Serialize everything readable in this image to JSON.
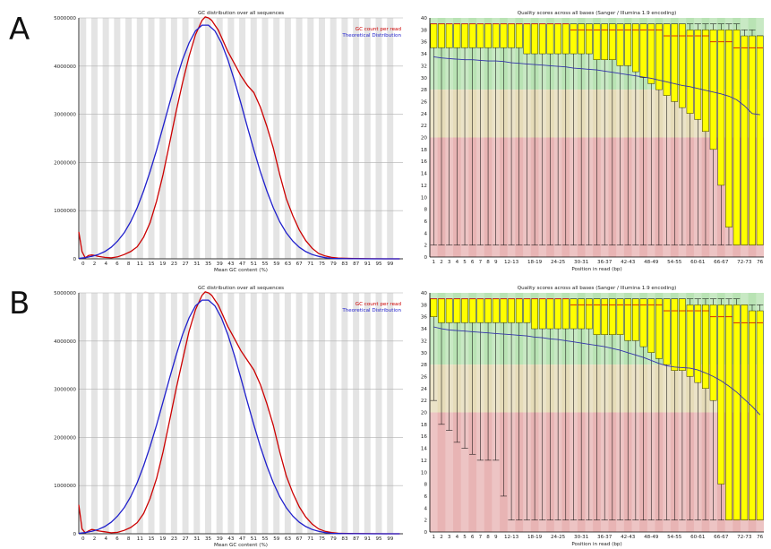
{
  "panels": [
    {
      "label": "A"
    },
    {
      "label": "B"
    }
  ],
  "colors": {
    "gc_read": "#cc0000",
    "gc_theory": "#1f1fcc",
    "qual_good": "#b9e3b4",
    "qual_ok": "#e6dcb9",
    "qual_bad": "#e8b4b4",
    "box": "#ffff00",
    "median": "#cc0000",
    "mean": "#3333aa"
  },
  "chart_data": [
    {
      "panel": "A",
      "type": "line",
      "title": "GC distribution over all sequences",
      "xlabel": "Mean GC content (%)",
      "ylabel": "",
      "xlim": [
        0,
        100
      ],
      "ylim": [
        0,
        5000000
      ],
      "yticks": [
        0,
        1000000,
        2000000,
        3000000,
        4000000,
        5000000
      ],
      "xticks": [
        "0",
        "2",
        "4",
        "6",
        "8",
        "11",
        "15",
        "19",
        "23",
        "27",
        "31",
        "35",
        "39",
        "43",
        "47",
        "51",
        "55",
        "59",
        "63",
        "67",
        "71",
        "75",
        "79",
        "83",
        "87",
        "91",
        "95",
        "99"
      ],
      "legend_position": "top-right",
      "series": [
        {
          "name": "GC count per read",
          "color": "#cc0000",
          "x": [
            0,
            1,
            2,
            3,
            4,
            5,
            6,
            8,
            10,
            12,
            14,
            16,
            18,
            20,
            22,
            24,
            26,
            28,
            30,
            32,
            34,
            36,
            38,
            39,
            40,
            41,
            42,
            43,
            44,
            46,
            48,
            50,
            52,
            54,
            56,
            58,
            60,
            62,
            64,
            66,
            68,
            70,
            72,
            74,
            76,
            78,
            80,
            85,
            90,
            95,
            99
          ],
          "y": [
            560000,
            150000,
            20000,
            70000,
            80000,
            70000,
            50000,
            30000,
            20000,
            40000,
            90000,
            150000,
            250000,
            450000,
            750000,
            1200000,
            1750000,
            2400000,
            3050000,
            3650000,
            4200000,
            4650000,
            4950000,
            5020000,
            5000000,
            4950000,
            4850000,
            4750000,
            4600000,
            4300000,
            4050000,
            3800000,
            3600000,
            3450000,
            3150000,
            2750000,
            2300000,
            1750000,
            1250000,
            900000,
            600000,
            380000,
            220000,
            110000,
            60000,
            30000,
            15000,
            5000,
            2000,
            0,
            0
          ]
        },
        {
          "name": "Theoretical Distribution",
          "color": "#1f1fcc",
          "x": [
            0,
            2,
            4,
            6,
            8,
            10,
            12,
            14,
            16,
            18,
            20,
            22,
            24,
            26,
            28,
            30,
            32,
            34,
            36,
            38,
            40,
            42,
            44,
            46,
            48,
            50,
            52,
            54,
            56,
            58,
            60,
            62,
            64,
            66,
            68,
            70,
            72,
            74,
            76,
            78,
            80,
            85,
            90,
            95,
            99
          ],
          "y": [
            10000,
            25000,
            50000,
            90000,
            150000,
            240000,
            370000,
            540000,
            770000,
            1060000,
            1410000,
            1810000,
            2260000,
            2740000,
            3230000,
            3700000,
            4130000,
            4480000,
            4730000,
            4850000,
            4850000,
            4730000,
            4480000,
            4130000,
            3700000,
            3230000,
            2740000,
            2260000,
            1810000,
            1410000,
            1060000,
            770000,
            540000,
            370000,
            240000,
            150000,
            90000,
            50000,
            25000,
            10000,
            5000,
            1000,
            0,
            0,
            0
          ]
        }
      ]
    },
    {
      "panel": "A",
      "type": "box",
      "title": "Quality scores across all bases (Sanger / Illumina 1.9 encoding)",
      "xlabel": "Position in read (bp)",
      "ylabel": "",
      "ylim": [
        0,
        40
      ],
      "yticks": [
        0,
        2,
        4,
        6,
        8,
        10,
        12,
        14,
        16,
        18,
        20,
        22,
        24,
        26,
        28,
        30,
        32,
        34,
        36,
        38,
        40
      ],
      "bands": [
        {
          "from": 28,
          "to": 40,
          "zone": "good"
        },
        {
          "from": 20,
          "to": 28,
          "zone": "ok"
        },
        {
          "from": 0,
          "to": 20,
          "zone": "bad"
        }
      ],
      "categories": [
        "1",
        "2",
        "3",
        "4",
        "5",
        "6",
        "7",
        "8",
        "9",
        "10-11",
        "12-13",
        "14-15",
        "16-17",
        "18-19",
        "20-21",
        "22-23",
        "24-25",
        "26-27",
        "28-29",
        "30-31",
        "32-33",
        "34-35",
        "36-37",
        "38-39",
        "40-41",
        "42-43",
        "44-45",
        "46-47",
        "48-49",
        "50-51",
        "52-53",
        "54-55",
        "56-57",
        "58-59",
        "60-61",
        "62-63",
        "64-65",
        "66-67",
        "68-69",
        "70-71",
        "72-73",
        "74-75",
        "76"
      ],
      "tick_labels": [
        "1",
        "2",
        "3",
        "4",
        "5",
        "6",
        "7",
        "8",
        "9",
        "12-13",
        "18-19",
        "24-25",
        "30-31",
        "36-37",
        "42-43",
        "48-49",
        "54-55",
        "60-61",
        "66-67",
        "72-73",
        "76"
      ],
      "q1": [
        35,
        35,
        35,
        35,
        35,
        35,
        35,
        35,
        35,
        35,
        35,
        35,
        34,
        34,
        34,
        34,
        34,
        34,
        34,
        34,
        34,
        33,
        33,
        33,
        32,
        32,
        31,
        30,
        29,
        28,
        27,
        26,
        25,
        24,
        23,
        21,
        18,
        12,
        5,
        2,
        2,
        2,
        2
      ],
      "median": [
        39,
        39,
        39,
        39,
        39,
        39,
        39,
        39,
        39,
        39,
        39,
        39,
        39,
        39,
        39,
        39,
        39,
        39,
        38,
        38,
        38,
        38,
        38,
        38,
        38,
        38,
        38,
        38,
        38,
        38,
        37,
        37,
        37,
        37,
        37,
        37,
        36,
        36,
        36,
        35,
        35,
        35,
        35
      ],
      "q3": [
        39,
        39,
        39,
        39,
        39,
        39,
        39,
        39,
        39,
        39,
        39,
        39,
        39,
        39,
        39,
        39,
        39,
        39,
        39,
        39,
        39,
        39,
        39,
        39,
        39,
        39,
        39,
        39,
        39,
        39,
        39,
        39,
        39,
        38,
        38,
        38,
        38,
        38,
        38,
        38,
        37,
        37,
        37
      ],
      "low": [
        2,
        2,
        2,
        2,
        2,
        2,
        2,
        2,
        2,
        2,
        2,
        2,
        2,
        2,
        2,
        2,
        2,
        2,
        2,
        2,
        2,
        2,
        2,
        2,
        2,
        2,
        2,
        2,
        2,
        2,
        2,
        2,
        2,
        2,
        2,
        2,
        2,
        2,
        2,
        2,
        2,
        2,
        2
      ],
      "high": [
        39,
        39,
        39,
        39,
        39,
        39,
        39,
        39,
        39,
        39,
        39,
        39,
        39,
        39,
        39,
        39,
        39,
        39,
        39,
        39,
        39,
        39,
        39,
        39,
        39,
        39,
        39,
        39,
        39,
        39,
        39,
        39,
        39,
        39,
        39,
        39,
        39,
        39,
        39,
        39,
        38,
        38,
        37
      ],
      "mean": [
        33.5,
        33.3,
        33.2,
        33.1,
        33.0,
        33.0,
        32.9,
        32.8,
        32.8,
        32.7,
        32.5,
        32.4,
        32.3,
        32.2,
        32.1,
        32.0,
        31.9,
        31.8,
        31.6,
        31.5,
        31.4,
        31.3,
        31.1,
        30.9,
        30.7,
        30.5,
        30.3,
        30.1,
        29.9,
        29.6,
        29.3,
        29.0,
        28.7,
        28.5,
        28.2,
        27.9,
        27.6,
        27.3,
        26.9,
        26.3,
        25.3,
        24.0,
        23.8
      ]
    },
    {
      "panel": "B",
      "type": "line",
      "title": "GC distribution over all sequences",
      "xlabel": "Mean GC content (%)",
      "ylabel": "",
      "xlim": [
        0,
        100
      ],
      "ylim": [
        0,
        5000000
      ],
      "yticks": [
        0,
        1000000,
        2000000,
        3000000,
        4000000,
        5000000
      ],
      "xticks": [
        "0",
        "2",
        "4",
        "6",
        "8",
        "11",
        "15",
        "19",
        "23",
        "27",
        "31",
        "35",
        "39",
        "43",
        "47",
        "51",
        "55",
        "59",
        "63",
        "67",
        "71",
        "75",
        "79",
        "83",
        "87",
        "91",
        "95",
        "99"
      ],
      "legend_position": "top-right",
      "series": [
        {
          "name": "GC count per read",
          "color": "#cc0000",
          "x": [
            0,
            1,
            2,
            3,
            4,
            5,
            6,
            8,
            10,
            12,
            14,
            16,
            18,
            20,
            22,
            24,
            26,
            28,
            30,
            32,
            34,
            36,
            38,
            39,
            40,
            41,
            42,
            43,
            44,
            46,
            48,
            50,
            52,
            54,
            56,
            58,
            60,
            62,
            64,
            66,
            68,
            70,
            72,
            74,
            76,
            78,
            80,
            85,
            90,
            95,
            99
          ],
          "y": [
            600000,
            100000,
            20000,
            60000,
            90000,
            80000,
            60000,
            40000,
            20000,
            30000,
            70000,
            130000,
            230000,
            420000,
            730000,
            1150000,
            1700000,
            2350000,
            3000000,
            3600000,
            4200000,
            4650000,
            4950000,
            5020000,
            5000000,
            4950000,
            4850000,
            4750000,
            4600000,
            4300000,
            4050000,
            3800000,
            3600000,
            3400000,
            3100000,
            2700000,
            2250000,
            1700000,
            1200000,
            850000,
            560000,
            350000,
            200000,
            100000,
            50000,
            25000,
            12000,
            4000,
            1000,
            0,
            0
          ]
        },
        {
          "name": "Theoretical Distribution",
          "color": "#1f1fcc",
          "x": [
            0,
            2,
            4,
            6,
            8,
            10,
            12,
            14,
            16,
            18,
            20,
            22,
            24,
            26,
            28,
            30,
            32,
            34,
            36,
            38,
            40,
            42,
            44,
            46,
            48,
            50,
            52,
            54,
            56,
            58,
            60,
            62,
            64,
            66,
            68,
            70,
            72,
            74,
            76,
            78,
            80,
            85,
            90,
            95,
            99
          ],
          "y": [
            10000,
            25000,
            50000,
            90000,
            150000,
            240000,
            370000,
            540000,
            770000,
            1060000,
            1410000,
            1810000,
            2260000,
            2740000,
            3230000,
            3700000,
            4130000,
            4480000,
            4730000,
            4850000,
            4850000,
            4730000,
            4480000,
            4130000,
            3700000,
            3230000,
            2740000,
            2260000,
            1810000,
            1410000,
            1060000,
            770000,
            540000,
            370000,
            240000,
            150000,
            90000,
            50000,
            25000,
            10000,
            5000,
            1000,
            0,
            0,
            0
          ]
        }
      ]
    },
    {
      "panel": "B",
      "type": "box",
      "title": "Quality scores across all bases (Sanger / Illumina 1.9 encoding)",
      "xlabel": "Position in read (bp)",
      "ylabel": "",
      "ylim": [
        0,
        40
      ],
      "yticks": [
        0,
        2,
        4,
        6,
        8,
        10,
        12,
        14,
        16,
        18,
        20,
        22,
        24,
        26,
        28,
        30,
        32,
        34,
        36,
        38,
        40
      ],
      "bands": [
        {
          "from": 28,
          "to": 40,
          "zone": "good"
        },
        {
          "from": 20,
          "to": 28,
          "zone": "ok"
        },
        {
          "from": 0,
          "to": 20,
          "zone": "bad"
        }
      ],
      "categories": [
        "1",
        "2",
        "3",
        "4",
        "5",
        "6",
        "7",
        "8",
        "9",
        "10-11",
        "12-13",
        "14-15",
        "16-17",
        "18-19",
        "20-21",
        "22-23",
        "24-25",
        "26-27",
        "28-29",
        "30-31",
        "32-33",
        "34-35",
        "36-37",
        "38-39",
        "40-41",
        "42-43",
        "44-45",
        "46-47",
        "48-49",
        "50-51",
        "52-53",
        "54-55",
        "56-57",
        "58-59",
        "60-61",
        "62-63",
        "64-65",
        "66-67",
        "68-69",
        "70-71",
        "72-73",
        "74-75",
        "76"
      ],
      "tick_labels": [
        "1",
        "2",
        "3",
        "4",
        "5",
        "6",
        "7",
        "8",
        "9",
        "12-13",
        "18-19",
        "24-25",
        "30-31",
        "36-37",
        "42-43",
        "48-49",
        "54-55",
        "60-61",
        "66-67",
        "72-73",
        "76"
      ],
      "q1": [
        36,
        35,
        35,
        35,
        35,
        35,
        35,
        35,
        35,
        35,
        35,
        35,
        35,
        34,
        34,
        34,
        34,
        34,
        34,
        34,
        34,
        33,
        33,
        33,
        33,
        32,
        32,
        31,
        30,
        29,
        28,
        27,
        27,
        26,
        25,
        24,
        22,
        8,
        2,
        2,
        2,
        2,
        2
      ],
      "median": [
        39,
        39,
        39,
        39,
        39,
        39,
        39,
        39,
        39,
        39,
        39,
        39,
        39,
        39,
        39,
        39,
        39,
        39,
        38,
        38,
        38,
        38,
        38,
        38,
        38,
        38,
        38,
        38,
        38,
        38,
        37,
        37,
        37,
        37,
        37,
        37,
        36,
        36,
        36,
        35,
        35,
        35,
        35
      ],
      "q3": [
        39,
        39,
        39,
        39,
        39,
        39,
        39,
        39,
        39,
        39,
        39,
        39,
        39,
        39,
        39,
        39,
        39,
        39,
        39,
        39,
        39,
        39,
        39,
        39,
        39,
        39,
        39,
        39,
        39,
        39,
        39,
        39,
        39,
        38,
        38,
        38,
        38,
        38,
        38,
        38,
        38,
        37,
        37
      ],
      "low": [
        22,
        18,
        17,
        15,
        14,
        13,
        12,
        12,
        12,
        6,
        2,
        2,
        2,
        2,
        2,
        2,
        2,
        2,
        2,
        2,
        2,
        2,
        2,
        2,
        2,
        2,
        2,
        2,
        2,
        2,
        2,
        2,
        2,
        2,
        2,
        2,
        2,
        2,
        2,
        2,
        2,
        2,
        2
      ],
      "high": [
        39,
        39,
        39,
        39,
        39,
        39,
        39,
        39,
        39,
        39,
        39,
        39,
        39,
        39,
        39,
        39,
        39,
        39,
        39,
        39,
        39,
        39,
        39,
        39,
        39,
        39,
        39,
        39,
        39,
        39,
        39,
        39,
        39,
        39,
        39,
        39,
        39,
        39,
        39,
        39,
        38,
        38,
        38
      ],
      "mean": [
        34.3,
        34.0,
        33.8,
        33.7,
        33.6,
        33.5,
        33.4,
        33.3,
        33.2,
        33.1,
        33.0,
        32.9,
        32.8,
        32.6,
        32.5,
        32.3,
        32.2,
        32.0,
        31.8,
        31.6,
        31.4,
        31.2,
        31.0,
        30.7,
        30.4,
        30.0,
        29.6,
        29.2,
        28.7,
        28.2,
        27.8,
        27.6,
        27.5,
        27.4,
        27.1,
        26.6,
        26.0,
        25.3,
        24.4,
        23.4,
        22.2,
        21.0,
        19.6
      ]
    }
  ]
}
